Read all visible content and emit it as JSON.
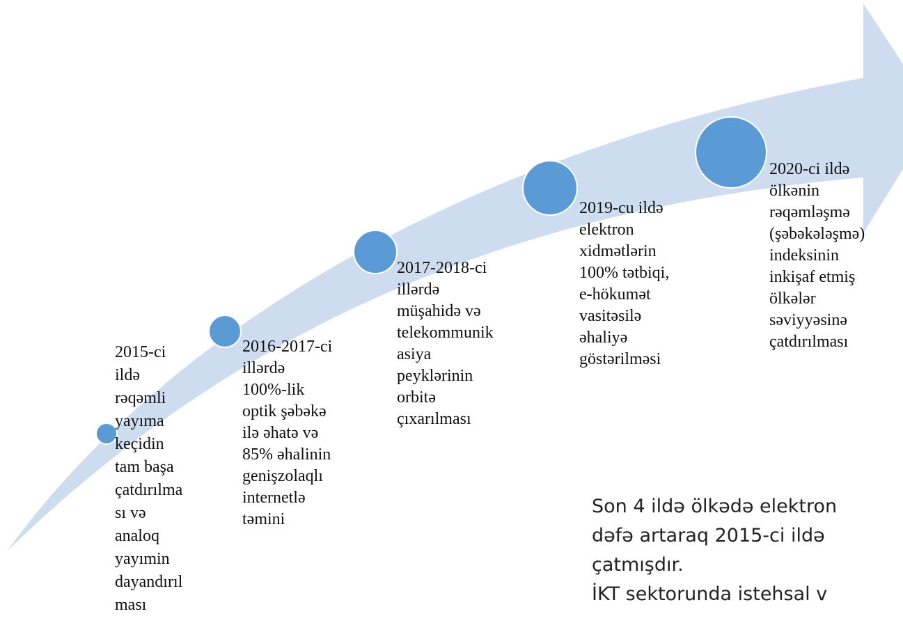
{
  "items": [
    {
      "lines": [
        "2015-ci",
        "ildə",
        "rəqəmli",
        "yayıma",
        "keçidin",
        "tam başa",
        "çatdırılma",
        "sı və",
        "analoq",
        "yayımin",
        "dayandırıl",
        "ması"
      ]
    },
    {
      "lines": [
        "2016-2017-ci",
        "illərdə",
        "100%-lik",
        "optik şəbəkə",
        "ilə əhatə və",
        "85% əhalinin",
        "genişzolaqlı",
        "internetlə",
        "təmini"
      ]
    },
    {
      "lines": [
        "2017-2018-ci",
        "illərdə",
        "müşahidə və",
        "telekommunik",
        "asiya",
        "peyklərinin",
        "orbitə",
        "çıxarılması"
      ]
    },
    {
      "lines": [
        "2019-cu ildə",
        "elektron",
        "xidmətlərin",
        "100% tətbiqi,",
        "e-hökumət",
        "vasitəsilə",
        "əhaliyə",
        "göstərilməsi"
      ]
    },
    {
      "lines": [
        "2020-ci ildə",
        "ölkənin",
        "rəqəmləşmə",
        "(şəbəkələşmə)",
        "indeksinin",
        "inkişaf etmiş",
        "ölkələr",
        "səviyyəsinə",
        "çatdırılması"
      ]
    }
  ],
  "note": {
    "lines": [
      "Son 4 ildə ölkədə elektron",
      "dəfə artaraq 2015-ci ildə",
      "çatmışdır.",
      "İKT sektorunda istehsal v"
    ]
  }
}
